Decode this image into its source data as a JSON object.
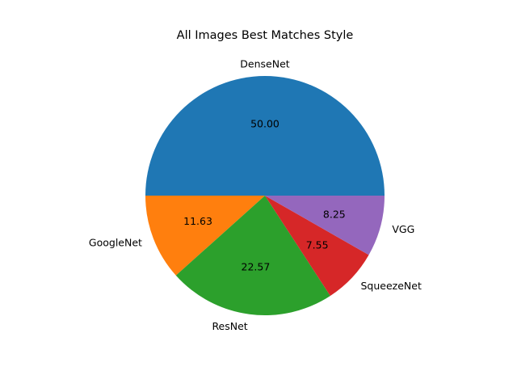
{
  "chart_data": {
    "type": "pie",
    "title": "All Images Best Matches Style",
    "slices": [
      {
        "label": "DenseNet",
        "value": 50.0,
        "value_label": "50.00",
        "color": "#1f77b4"
      },
      {
        "label": "GoogleNet",
        "value": 11.63,
        "value_label": "11.63",
        "color": "#ff7f0e"
      },
      {
        "label": "ResNet",
        "value": 22.57,
        "value_label": "22.57",
        "color": "#2ca02c"
      },
      {
        "label": "SqueezeNet",
        "value": 7.55,
        "value_label": "7.55",
        "color": "#d62728"
      },
      {
        "label": "VGG",
        "value": 8.25,
        "value_label": "8.25",
        "color": "#9467bd"
      }
    ],
    "start_angle_deg": 0,
    "direction": "counterclockwise",
    "legend": "none"
  }
}
